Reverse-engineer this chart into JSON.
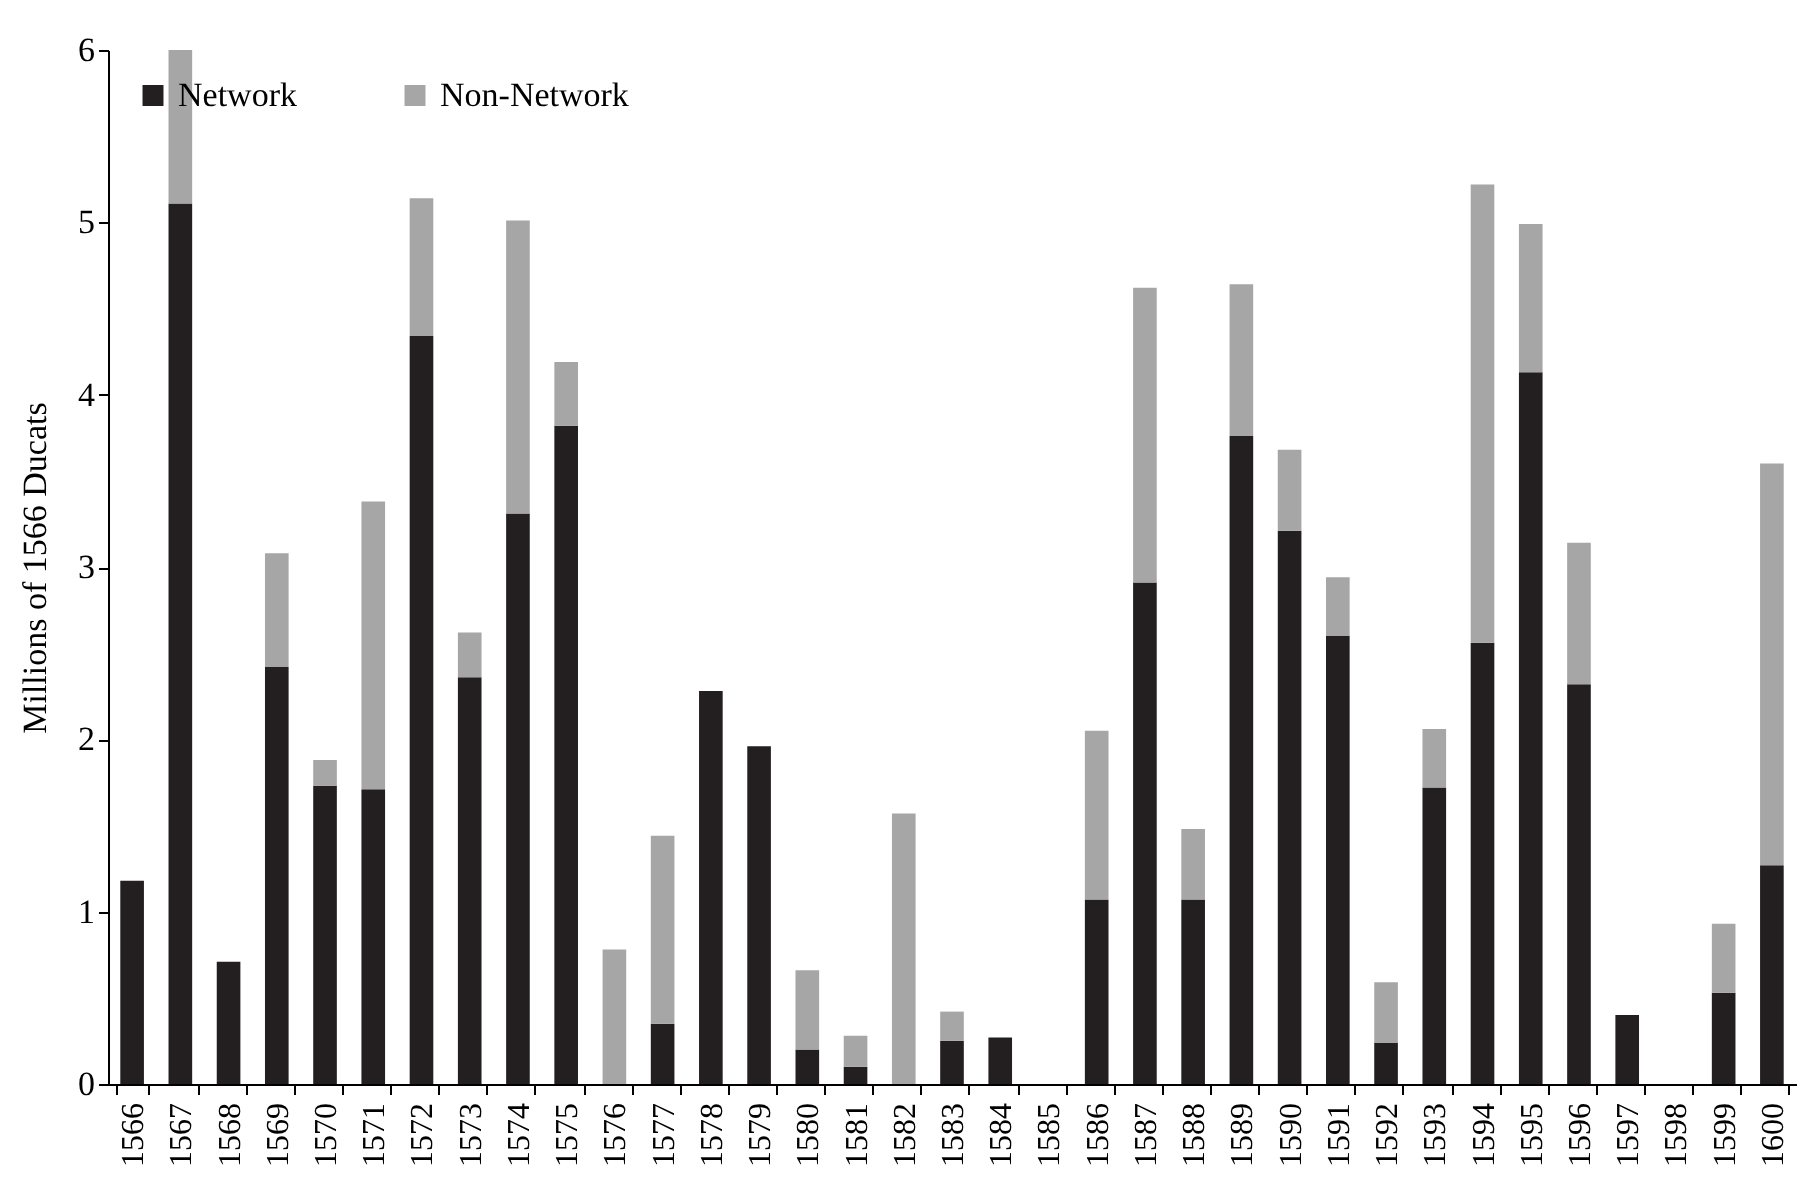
{
  "chart_data": {
    "type": "bar",
    "stacked": true,
    "ylabel": "Millions of 1566 Ducats",
    "legend": "top left",
    "grid": false,
    "categories": [
      "1566",
      "1567",
      "1568",
      "1569",
      "1570",
      "1571",
      "1572",
      "1573",
      "1574",
      "1575",
      "1576",
      "1577",
      "1578",
      "1579",
      "1580",
      "1581",
      "1582",
      "1583",
      "1584",
      "1585",
      "1586",
      "1587",
      "1588",
      "1589",
      "1590",
      "1591",
      "1592",
      "1593",
      "1594",
      "1595",
      "1596",
      "1597",
      "1598",
      "1599",
      "1600"
    ],
    "ylim": [
      0,
      6
    ],
    "yticks": [
      0,
      1,
      2,
      3,
      4,
      5,
      6
    ],
    "series": [
      {
        "name": "Network",
        "color": "#231f20",
        "values": [
          1.18,
          5.11,
          0.71,
          2.42,
          1.73,
          1.71,
          4.34,
          2.36,
          3.31,
          3.82,
          0,
          0.35,
          2.28,
          1.96,
          0.2,
          0.1,
          0,
          0.25,
          0.27,
          0,
          1.07,
          2.91,
          1.07,
          3.76,
          3.21,
          2.6,
          0.24,
          1.72,
          2.56,
          4.13,
          2.32,
          0.4,
          0,
          0.53,
          1.27
        ]
      },
      {
        "name": "Non-Network",
        "color": "#a6a6a6",
        "values": [
          0,
          0.89,
          0,
          0.66,
          0.15,
          1.67,
          0.8,
          0.26,
          1.7,
          0.37,
          0.78,
          1.09,
          0,
          0,
          0.46,
          0.18,
          1.57,
          0.17,
          0,
          0,
          0.98,
          1.71,
          0.41,
          0.88,
          0.47,
          0.34,
          0.35,
          0.34,
          2.66,
          0.86,
          0.82,
          0,
          0,
          0.4,
          2.33
        ]
      }
    ]
  }
}
